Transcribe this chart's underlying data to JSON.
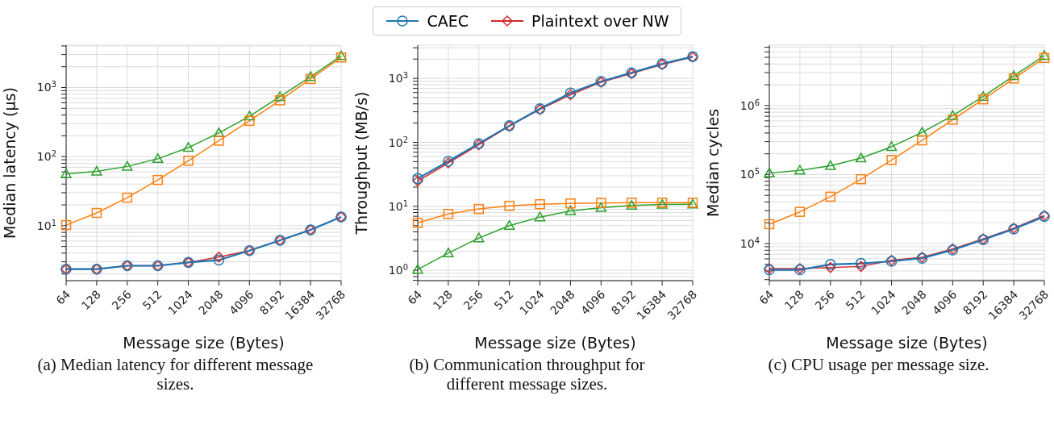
{
  "chart_data": [
    {
      "type": "line",
      "xlabel": "Message size (Bytes)",
      "ylabel": "Median latency (μs)",
      "log": "y",
      "grid": true,
      "legend": "top",
      "annotations": [
        "(a) Median latency for different message sizes."
      ],
      "categories": [
        "64",
        "128",
        "256",
        "512",
        "1024",
        "2048",
        "4096",
        "8192",
        "16384",
        "32768"
      ],
      "ylim": [
        1.6,
        4100
      ],
      "yticks": [
        {
          "value": 2,
          "label": null
        },
        {
          "value": 3,
          "label": null
        },
        {
          "value": 4,
          "label": null
        },
        {
          "value": 5,
          "label": null
        },
        {
          "value": 6,
          "label": null
        },
        {
          "value": 7,
          "label": null
        },
        {
          "value": 8,
          "label": null
        },
        {
          "value": 9,
          "label": null
        },
        {
          "value": 10,
          "label": "10$^{1}$"
        },
        {
          "value": 20,
          "label": null
        },
        {
          "value": 30,
          "label": null
        },
        {
          "value": 40,
          "label": null
        },
        {
          "value": 50,
          "label": null
        },
        {
          "value": 60,
          "label": null
        },
        {
          "value": 70,
          "label": null
        },
        {
          "value": 80,
          "label": null
        },
        {
          "value": 90,
          "label": null
        },
        {
          "value": 100,
          "label": "10$^{2}$"
        },
        {
          "value": 200,
          "label": null
        },
        {
          "value": 300,
          "label": null
        },
        {
          "value": 400,
          "label": null
        },
        {
          "value": 500,
          "label": null
        },
        {
          "value": 600,
          "label": null
        },
        {
          "value": 700,
          "label": null
        },
        {
          "value": 800,
          "label": null
        },
        {
          "value": 900,
          "label": null
        },
        {
          "value": 1000,
          "label": "10$^{3}$"
        },
        {
          "value": 2000,
          "label": null
        },
        {
          "value": 3000,
          "label": null
        },
        {
          "value": 4000,
          "label": null
        }
      ],
      "series": [
        {
          "name": "CAEC",
          "color": "#1f77b4",
          "marker": "circle",
          "values": [
            2.35,
            2.35,
            2.63,
            2.63,
            2.94,
            3.18,
            4.36,
            6.14,
            8.7,
            13.4
          ]
        },
        {
          "color": "#ff7f0e",
          "marker": "square",
          "values": [
            10.2,
            15.3,
            25.4,
            45.9,
            87,
            170,
            329,
            652,
            1327,
            2720
          ]
        },
        {
          "color": "#2ca02c",
          "marker": "triangle",
          "values": [
            56,
            61,
            72,
            93,
            135,
            220,
            384,
            735,
            1432,
            2864
          ]
        },
        {
          "name": "Plaintext over NW",
          "color": "#d62728",
          "marker": "diamond",
          "values": [
            2.35,
            2.35,
            2.63,
            2.63,
            2.94,
            3.52,
            4.36,
            6.14,
            8.7,
            13.4
          ]
        }
      ]
    },
    {
      "type": "line",
      "xlabel": "Message size (Bytes)",
      "ylabel": "Throughput (MB/s)",
      "log": "y",
      "grid": true,
      "annotations": [
        "(b) Communication throughput for different message sizes."
      ],
      "categories": [
        "64",
        "128",
        "256",
        "512",
        "1024",
        "2048",
        "4096",
        "8192",
        "16384",
        "32768"
      ],
      "ylim": [
        0.69,
        3300
      ],
      "yticks": [
        {
          "value": 0.7,
          "label": null
        },
        {
          "value": 0.8,
          "label": null
        },
        {
          "value": 0.9,
          "label": null
        },
        {
          "value": 1,
          "label": "10$^{0}$"
        },
        {
          "value": 2,
          "label": null
        },
        {
          "value": 3,
          "label": null
        },
        {
          "value": 4,
          "label": null
        },
        {
          "value": 5,
          "label": null
        },
        {
          "value": 6,
          "label": null
        },
        {
          "value": 7,
          "label": null
        },
        {
          "value": 8,
          "label": null
        },
        {
          "value": 9,
          "label": null
        },
        {
          "value": 10,
          "label": "10$^{1}$"
        },
        {
          "value": 20,
          "label": null
        },
        {
          "value": 30,
          "label": null
        },
        {
          "value": 40,
          "label": null
        },
        {
          "value": 50,
          "label": null
        },
        {
          "value": 60,
          "label": null
        },
        {
          "value": 70,
          "label": null
        },
        {
          "value": 80,
          "label": null
        },
        {
          "value": 90,
          "label": null
        },
        {
          "value": 100,
          "label": "10$^{2}$"
        },
        {
          "value": 200,
          "label": null
        },
        {
          "value": 300,
          "label": null
        },
        {
          "value": 400,
          "label": null
        },
        {
          "value": 500,
          "label": null
        },
        {
          "value": 600,
          "label": null
        },
        {
          "value": 700,
          "label": null
        },
        {
          "value": 800,
          "label": null
        },
        {
          "value": 900,
          "label": null
        },
        {
          "value": 1000,
          "label": "10$^{3}$"
        },
        {
          "value": 2000,
          "label": null
        },
        {
          "value": 3000,
          "label": null
        }
      ],
      "series": [
        {
          "name": "CAEC",
          "color": "#1f77b4",
          "marker": "circle",
          "values": [
            27.2,
            50.5,
            96,
            182,
            336,
            590,
            895,
            1225,
            1693,
            2190
          ]
        },
        {
          "color": "#ff7f0e",
          "marker": "square",
          "values": [
            5.53,
            7.6,
            9.1,
            10.2,
            10.8,
            11.1,
            11.3,
            11.4,
            11.4,
            11.4
          ]
        },
        {
          "color": "#2ca02c",
          "marker": "triangle",
          "values": [
            1.03,
            1.86,
            3.2,
            5.0,
            6.8,
            8.5,
            9.55,
            10.3,
            10.7,
            10.8
          ]
        },
        {
          "name": "Plaintext over NW",
          "color": "#d62728",
          "marker": "diamond",
          "values": [
            24.8,
            47.7,
            92,
            179,
            327,
            553,
            871,
            1191,
            1648,
            2153
          ]
        }
      ]
    },
    {
      "type": "line",
      "xlabel": "Message size (Bytes)",
      "ylabel": "Median cycles",
      "log": "y",
      "grid": true,
      "annotations": [
        "(c) CPU usage per message size."
      ],
      "categories": [
        "64",
        "128",
        "256",
        "512",
        "1024",
        "2048",
        "4096",
        "8192",
        "16384",
        "32768"
      ],
      "ylim": [
        2900,
        7500000
      ],
      "yticks": [
        {
          "value": 3000,
          "label": null
        },
        {
          "value": 4000,
          "label": null
        },
        {
          "value": 5000,
          "label": null
        },
        {
          "value": 6000,
          "label": null
        },
        {
          "value": 7000,
          "label": null
        },
        {
          "value": 8000,
          "label": null
        },
        {
          "value": 9000,
          "label": null
        },
        {
          "value": 10000,
          "label": "10$^{4}$"
        },
        {
          "value": 20000,
          "label": null
        },
        {
          "value": 30000,
          "label": null
        },
        {
          "value": 40000,
          "label": null
        },
        {
          "value": 50000,
          "label": null
        },
        {
          "value": 60000,
          "label": null
        },
        {
          "value": 70000,
          "label": null
        },
        {
          "value": 80000,
          "label": null
        },
        {
          "value": 90000,
          "label": null
        },
        {
          "value": 100000,
          "label": "10$^{5}$"
        },
        {
          "value": 200000,
          "label": null
        },
        {
          "value": 300000,
          "label": null
        },
        {
          "value": 400000,
          "label": null
        },
        {
          "value": 500000,
          "label": null
        },
        {
          "value": 600000,
          "label": null
        },
        {
          "value": 700000,
          "label": null
        },
        {
          "value": 800000,
          "label": null
        },
        {
          "value": 900000,
          "label": null
        },
        {
          "value": 1000000,
          "label": "10$^{6}$"
        },
        {
          "value": 2000000,
          "label": null
        },
        {
          "value": 3000000,
          "label": null
        },
        {
          "value": 4000000,
          "label": null
        },
        {
          "value": 5000000,
          "label": null
        },
        {
          "value": 6000000,
          "label": null
        },
        {
          "value": 7000000,
          "label": null
        }
      ],
      "series": [
        {
          "name": "CAEC",
          "color": "#1f77b4",
          "marker": "circle",
          "values": [
            4160,
            4160,
            4990,
            5160,
            5530,
            6130,
            8070,
            11400,
            16200,
            24700
          ]
        },
        {
          "color": "#ff7f0e",
          "marker": "square",
          "values": [
            19100,
            28800,
            47800,
            85700,
            163000,
            313000,
            624000,
            1230000,
            2470000,
            4900000
          ]
        },
        {
          "color": "#2ca02c",
          "marker": "triangle",
          "values": [
            105000,
            115000,
            134000,
            173000,
            253000,
            409000,
            714000,
            1350000,
            2690000,
            5300000
          ]
        },
        {
          "name": "Plaintext over NW",
          "color": "#d62728",
          "marker": "diamond",
          "values": [
            4340,
            4340,
            4500,
            4660,
            5720,
            6340,
            8360,
            11700,
            16700,
            25500
          ]
        }
      ]
    }
  ]
}
